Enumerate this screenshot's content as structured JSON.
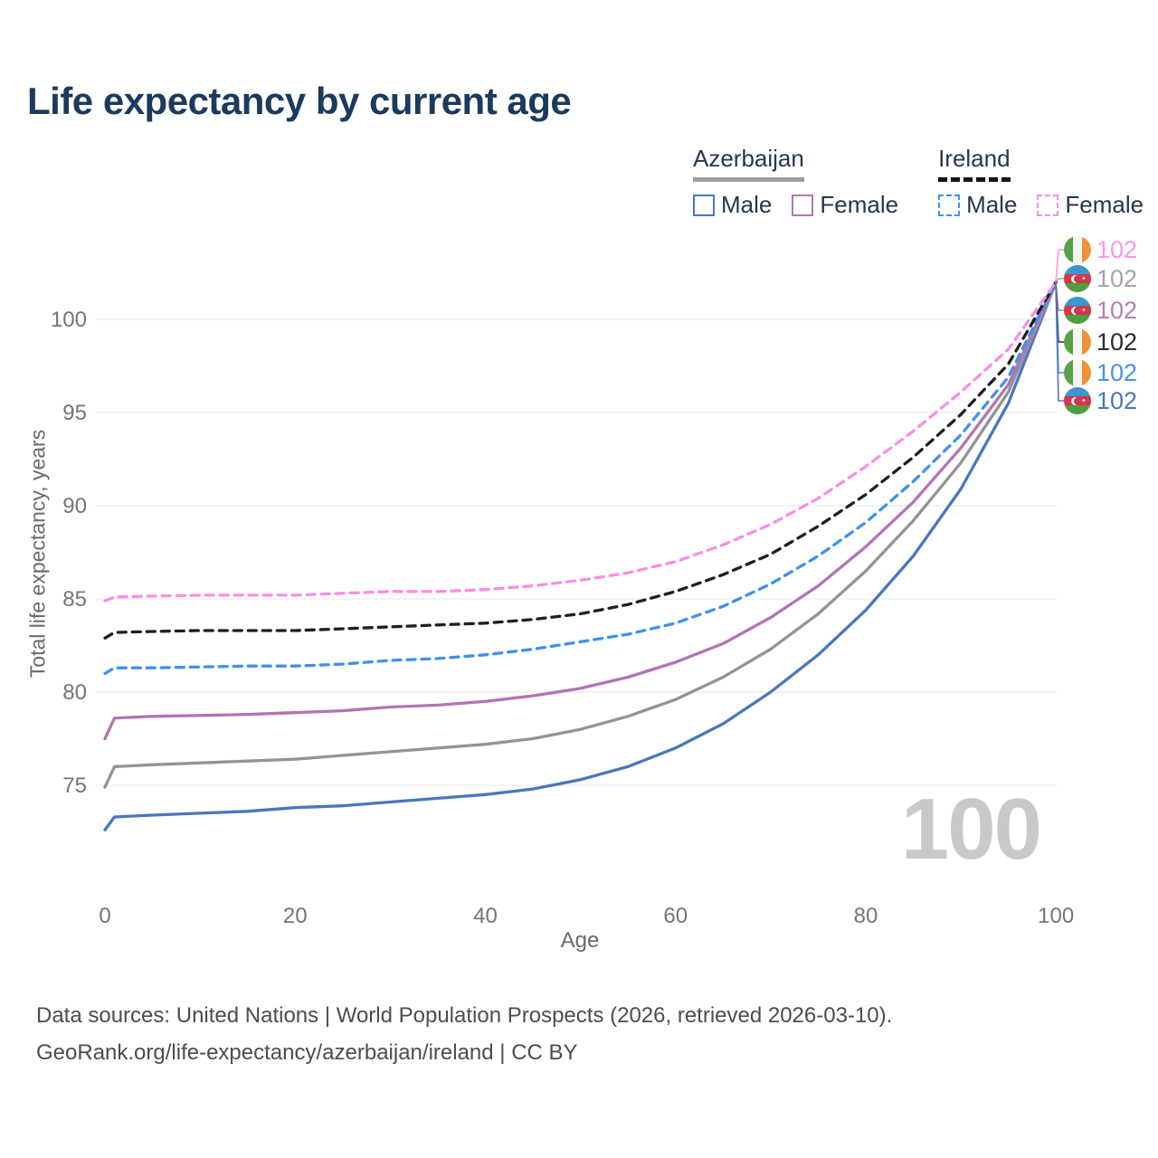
{
  "title": "Life expectancy by current age",
  "yaxis_label": "Total life expectancy, years",
  "xaxis_label": "Age",
  "watermark": "100",
  "colors": {
    "title": "#1c3a5e",
    "azerbaijan_male": "#4a77bd",
    "azerbaijan_total": "#949494",
    "azerbaijan_female": "#b274b4",
    "ireland_male": "#4090f0",
    "ireland_total": "#1f1f1f",
    "ireland_female": "#f98ee4",
    "grid": "#ececec",
    "watermark": "#c9c9c9"
  },
  "legend": {
    "groups": [
      {
        "name": "Azerbaijan",
        "underline": "solid",
        "items": [
          {
            "label": "Male",
            "color": "#4a77bd",
            "dashed": false
          },
          {
            "label": "Female",
            "color": "#b274b4",
            "dashed": false
          }
        ]
      },
      {
        "name": "Ireland",
        "underline": "dashed",
        "items": [
          {
            "label": "Male",
            "color": "#4090f0",
            "dashed": true
          },
          {
            "label": "Female",
            "color": "#f98ee4",
            "dashed": true
          }
        ]
      }
    ]
  },
  "chart_data": {
    "type": "line",
    "title": "Life expectancy by current age",
    "xlabel": "Age",
    "ylabel": "Total life expectancy, years",
    "xticks": [
      0,
      20,
      40,
      60,
      80,
      100
    ],
    "yticks": [
      75,
      80,
      85,
      90,
      95,
      100
    ],
    "xlim": [
      0,
      100
    ],
    "ylim": [
      72,
      103
    ],
    "grid": "horizontal-only",
    "legend_position": "top-right",
    "ages": [
      0,
      1,
      5,
      10,
      15,
      20,
      25,
      30,
      35,
      40,
      45,
      50,
      55,
      60,
      65,
      70,
      75,
      80,
      85,
      90,
      95,
      100
    ],
    "series": [
      {
        "id": "azerbaijan-male",
        "name": "Azerbaijan Male",
        "country": "Azerbaijan",
        "sex": "Male",
        "color": "#4a77bd",
        "dashed": false,
        "values": [
          72.6,
          73.3,
          73.4,
          73.5,
          73.6,
          73.8,
          73.9,
          74.1,
          74.3,
          74.5,
          74.8,
          75.3,
          76.0,
          77.0,
          78.3,
          80.0,
          82.0,
          84.4,
          87.3,
          90.9,
          95.5,
          102
        ]
      },
      {
        "id": "azerbaijan-total",
        "name": "Azerbaijan (both sexes)",
        "country": "Azerbaijan",
        "sex": "Both",
        "color": "#949494",
        "dashed": false,
        "values": [
          74.9,
          76.0,
          76.1,
          76.2,
          76.3,
          76.4,
          76.6,
          76.8,
          77.0,
          77.2,
          77.5,
          78.0,
          78.7,
          79.6,
          80.8,
          82.3,
          84.2,
          86.5,
          89.2,
          92.3,
          96.1,
          102
        ]
      },
      {
        "id": "azerbaijan-female",
        "name": "Azerbaijan Female",
        "country": "Azerbaijan",
        "sex": "Female",
        "color": "#b274b4",
        "dashed": false,
        "values": [
          77.5,
          78.6,
          78.7,
          78.75,
          78.8,
          78.9,
          79.0,
          79.2,
          79.3,
          79.5,
          79.8,
          80.2,
          80.8,
          81.6,
          82.6,
          84.0,
          85.7,
          87.8,
          90.2,
          93.1,
          96.5,
          102
        ]
      },
      {
        "id": "ireland-male",
        "name": "Ireland Male",
        "country": "Ireland",
        "sex": "Male",
        "color": "#4090f0",
        "dashed": true,
        "values": [
          81.0,
          81.3,
          81.3,
          81.35,
          81.4,
          81.4,
          81.5,
          81.7,
          81.8,
          82.0,
          82.3,
          82.7,
          83.1,
          83.7,
          84.6,
          85.8,
          87.3,
          89.1,
          91.3,
          93.8,
          96.9,
          102
        ]
      },
      {
        "id": "ireland-total",
        "name": "Ireland (both sexes)",
        "country": "Ireland",
        "sex": "Both",
        "color": "#1f1f1f",
        "dashed": true,
        "values": [
          82.9,
          83.2,
          83.25,
          83.3,
          83.3,
          83.3,
          83.4,
          83.5,
          83.6,
          83.7,
          83.9,
          84.2,
          84.7,
          85.4,
          86.3,
          87.4,
          88.9,
          90.6,
          92.6,
          94.9,
          97.6,
          102
        ]
      },
      {
        "id": "ireland-female",
        "name": "Ireland Female",
        "country": "Ireland",
        "sex": "Female",
        "color": "#f98ee4",
        "dashed": true,
        "values": [
          84.9,
          85.1,
          85.15,
          85.2,
          85.2,
          85.2,
          85.3,
          85.4,
          85.4,
          85.5,
          85.7,
          86.0,
          86.4,
          87.0,
          87.9,
          89.0,
          90.4,
          92.1,
          94.0,
          96.1,
          98.4,
          102
        ]
      }
    ]
  },
  "end_labels": [
    {
      "value": "102",
      "color": "#fb96e8",
      "flag": "ireland",
      "series": "Ireland Female"
    },
    {
      "value": "102",
      "color": "#a6a6a6",
      "flag": "azerbaijan",
      "series": "Azerbaijan (both sexes)"
    },
    {
      "value": "102",
      "color": "#b57fb2",
      "flag": "azerbaijan",
      "series": "Azerbaijan Female"
    },
    {
      "value": "102",
      "color": "#2b2b2b",
      "flag": "ireland",
      "series": "Ireland (both sexes)"
    },
    {
      "value": "102",
      "color": "#4a90f0",
      "flag": "ireland",
      "series": "Ireland Male"
    },
    {
      "value": "102",
      "color": "#4a77bd",
      "flag": "azerbaijan",
      "series": "Azerbaijan Male"
    }
  ],
  "footer": {
    "line1": "Data sources: United Nations | World Population Prospects (2026, retrieved 2026-03-10).",
    "line2": "GeoRank.org/life-expectancy/azerbaijan/ireland | CC BY"
  }
}
